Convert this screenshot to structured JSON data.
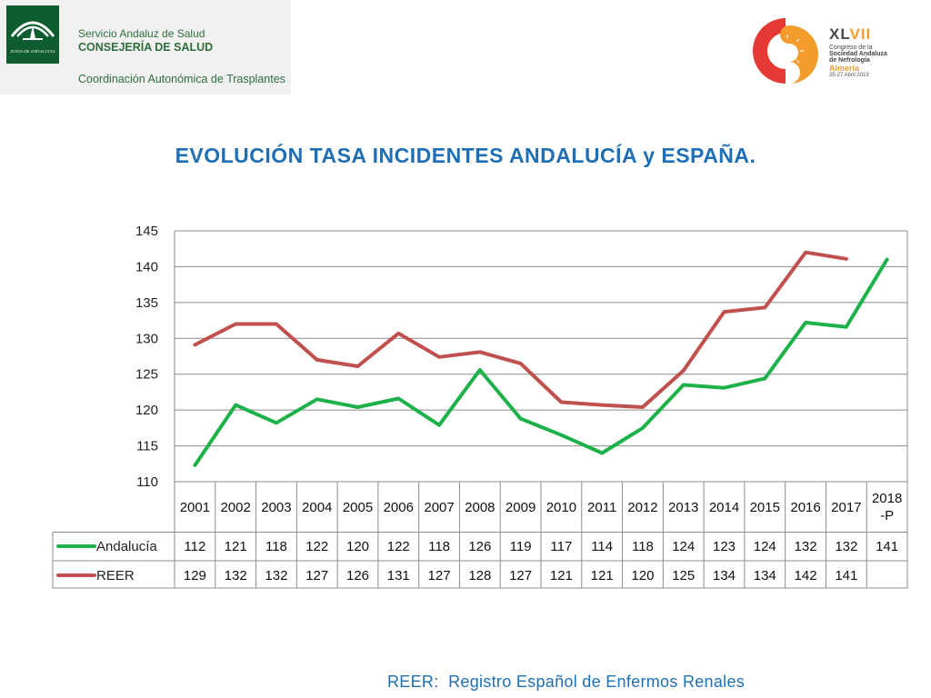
{
  "header": {
    "left_logo": {
      "emblem_text": "JUNTA DE ANDALUCIA",
      "line1": "Servicio Andaluz de Salud",
      "line2": "CONSEJERÍA DE SALUD",
      "line3": "Coordinación Autonómica de Trasplantes"
    },
    "right_logo": {
      "number_dark": "XL",
      "number_orange": "VII",
      "line1": "Congreso de la",
      "line2": "Sociedad Andaluza",
      "line3": "de Nefrología",
      "city": "Almería",
      "dates": "25-27 Abril 2019"
    }
  },
  "title": "EVOLUCIÓN TASA INCIDENTES ANDALUCÍA y ESPAÑA.",
  "footer": "REER:  Registro Español de Enfermos Renales",
  "colors": {
    "andalucia": "#1db14a",
    "reer": "#c0504d",
    "title": "#1e6fb5",
    "grid": "#888888"
  },
  "chart_data": {
    "type": "line",
    "title": "EVOLUCIÓN TASA INCIDENTES ANDALUCÍA y ESPAÑA.",
    "xlabel": "",
    "ylabel": "",
    "ylim": [
      110,
      145
    ],
    "yticks": [
      110,
      115,
      120,
      125,
      130,
      135,
      140,
      145
    ],
    "grid": true,
    "legend": "table-left",
    "categories": [
      "2001",
      "2002",
      "2003",
      "2004",
      "2005",
      "2006",
      "2007",
      "2008",
      "2009",
      "2010",
      "2011",
      "2012",
      "2013",
      "2014",
      "2015",
      "2016",
      "2017",
      "2018 -P"
    ],
    "category_lines": [
      [
        "2001"
      ],
      [
        "2002"
      ],
      [
        "2003"
      ],
      [
        "2004"
      ],
      [
        "2005"
      ],
      [
        "2006"
      ],
      [
        "2007"
      ],
      [
        "2008"
      ],
      [
        "2009"
      ],
      [
        "2010"
      ],
      [
        "2011"
      ],
      [
        "2012"
      ],
      [
        "2013"
      ],
      [
        "2014"
      ],
      [
        "2015"
      ],
      [
        "2016"
      ],
      [
        "2017"
      ],
      [
        "2018",
        "-P"
      ]
    ],
    "series": [
      {
        "name": "Andalucía",
        "color": "#1db14a",
        "values": [
          112.3,
          120.7,
          118.2,
          121.5,
          120.4,
          121.6,
          117.9,
          125.6,
          118.8,
          116.5,
          114.0,
          117.5,
          123.5,
          123.1,
          124.4,
          132.2,
          131.6,
          141.0
        ],
        "labels": [
          "112",
          "121",
          "118",
          "122",
          "120",
          "122",
          "118",
          "126",
          "119",
          "117",
          "114",
          "118",
          "124",
          "123",
          "124",
          "132",
          "132",
          "141"
        ]
      },
      {
        "name": "REER",
        "color": "#c0504d",
        "values": [
          129.1,
          132.0,
          132.0,
          127.0,
          126.1,
          130.7,
          127.4,
          128.1,
          126.5,
          121.1,
          120.7,
          120.4,
          125.5,
          133.7,
          134.3,
          142.0,
          141.1,
          null
        ],
        "labels": [
          "129",
          "132",
          "132",
          "127",
          "126",
          "131",
          "127",
          "128",
          "127",
          "121",
          "121",
          "120",
          "125",
          "134",
          "134",
          "142",
          "141",
          ""
        ]
      }
    ]
  }
}
